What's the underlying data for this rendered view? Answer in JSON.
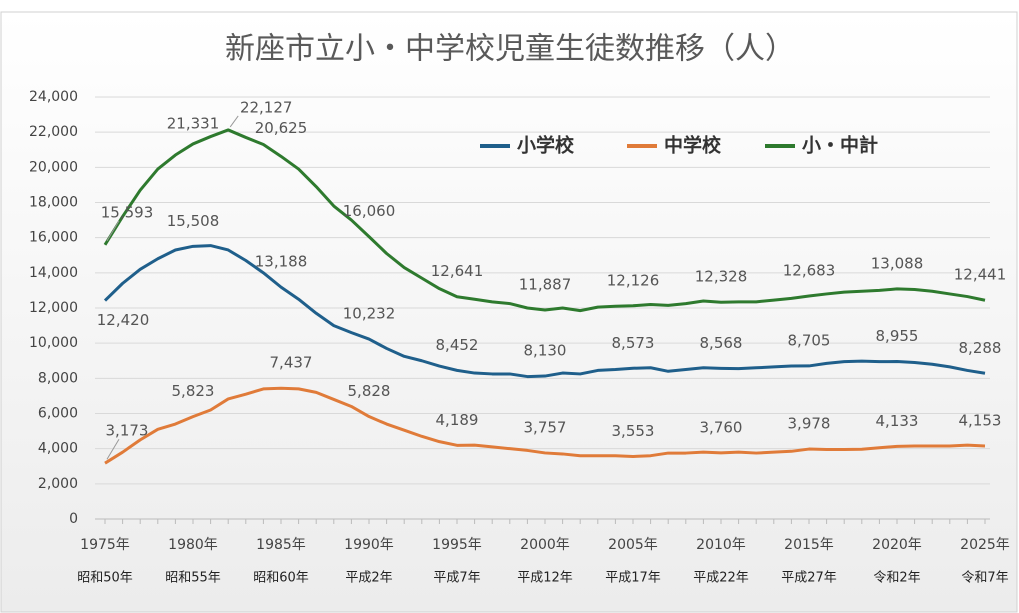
{
  "chart_data": {
    "type": "line",
    "title": "新座市立小・中学校児童生徒数推移（人）",
    "x": [
      1975,
      1976,
      1977,
      1978,
      1979,
      1980,
      1981,
      1982,
      1983,
      1984,
      1985,
      1986,
      1987,
      1988,
      1989,
      1990,
      1991,
      1992,
      1993,
      1994,
      1995,
      1996,
      1997,
      1998,
      1999,
      2000,
      2001,
      2002,
      2003,
      2004,
      2005,
      2006,
      2007,
      2008,
      2009,
      2010,
      2011,
      2012,
      2013,
      2014,
      2015,
      2016,
      2017,
      2018,
      2019,
      2020,
      2021,
      2022,
      2023,
      2024,
      2025
    ],
    "xlim": [
      1975,
      2025
    ],
    "xticks": [
      {
        "value": 1975,
        "label": "1975年"
      },
      {
        "value": 1980,
        "label": "1980年"
      },
      {
        "value": 1985,
        "label": "1985年"
      },
      {
        "value": 1990,
        "label": "1990年"
      },
      {
        "value": 1995,
        "label": "1995年"
      },
      {
        "value": 2000,
        "label": "2000年"
      },
      {
        "value": 2005,
        "label": "2005年"
      },
      {
        "value": 2010,
        "label": "2010年"
      },
      {
        "value": 2015,
        "label": "2015年"
      },
      {
        "value": 2020,
        "label": "2020年"
      },
      {
        "value": 2025,
        "label": "2025年"
      }
    ],
    "xtick_sublabels": [
      "昭和50年",
      "昭和55年",
      "昭和60年",
      "平成2年",
      "平成7年",
      "平成12年",
      "平成17年",
      "平成22年",
      "平成27年",
      "令和2年",
      "令和7年"
    ],
    "ylim": [
      0,
      24000
    ],
    "yticks": [
      0,
      {
        "value": 2000,
        "label": "2,000"
      },
      {
        "value": 4000,
        "label": "4,000"
      },
      {
        "value": 6000,
        "label": "6,000"
      },
      {
        "value": 8000,
        "label": "8,000"
      },
      {
        "value": 10000,
        "label": "10,000"
      },
      {
        "value": 12000,
        "label": "12,000"
      },
      {
        "value": 14000,
        "label": "14,000"
      },
      {
        "value": 16000,
        "label": "16,000"
      },
      {
        "value": 18000,
        "label": "18,000"
      },
      {
        "value": 20000,
        "label": "20,000"
      },
      {
        "value": 22000,
        "label": "22,000"
      },
      {
        "value": 24000,
        "label": "24,000"
      }
    ],
    "grid": true,
    "legend": "top-right",
    "series": [
      {
        "name": "小学校",
        "color": "#1f5f8b",
        "values": [
          12420,
          13400,
          14200,
          14800,
          15300,
          15508,
          15550,
          15300,
          14700,
          14000,
          13188,
          12500,
          11700,
          11000,
          10600,
          10232,
          9700,
          9250,
          9000,
          8700,
          8452,
          8300,
          8250,
          8250,
          8100,
          8130,
          8300,
          8250,
          8450,
          8500,
          8573,
          8600,
          8400,
          8500,
          8600,
          8568,
          8550,
          8600,
          8650,
          8700,
          8705,
          8850,
          8950,
          8980,
          8950,
          8955,
          8900,
          8800,
          8650,
          8450,
          8288
        ],
        "value_labels": [
          "12,420",
          null,
          null,
          null,
          null,
          "15,508",
          null,
          null,
          null,
          null,
          "13,188",
          null,
          null,
          null,
          null,
          "10,232",
          null,
          null,
          null,
          null,
          "8,452",
          null,
          null,
          null,
          null,
          "8,130",
          null,
          null,
          null,
          null,
          "8,573",
          null,
          null,
          null,
          null,
          "8,568",
          null,
          null,
          null,
          null,
          "8,705",
          null,
          null,
          null,
          null,
          "8,955",
          null,
          null,
          null,
          null,
          "8,288"
        ]
      },
      {
        "name": "中学校",
        "color": "#e07b39",
        "values": [
          3173,
          3800,
          4500,
          5100,
          5400,
          5823,
          6200,
          6827,
          7100,
          7400,
          7437,
          7400,
          7200,
          6800,
          6400,
          5828,
          5400,
          5050,
          4700,
          4400,
          4189,
          4200,
          4100,
          4000,
          3900,
          3757,
          3700,
          3600,
          3600,
          3600,
          3553,
          3600,
          3750,
          3750,
          3800,
          3760,
          3800,
          3750,
          3800,
          3850,
          3978,
          3950,
          3950,
          3970,
          4050,
          4133,
          4150,
          4150,
          4150,
          4200,
          4153
        ],
        "value_labels": [
          "3,173",
          null,
          null,
          null,
          null,
          "5,823",
          null,
          null,
          null,
          null,
          "7,437",
          null,
          null,
          null,
          null,
          "5,828",
          null,
          null,
          null,
          null,
          "4,189",
          null,
          null,
          null,
          null,
          "3,757",
          null,
          null,
          null,
          null,
          "3,553",
          null,
          null,
          null,
          null,
          "3,760",
          null,
          null,
          null,
          null,
          "3,978",
          null,
          null,
          null,
          null,
          "4,133",
          null,
          null,
          null,
          null,
          "4,153"
        ]
      },
      {
        "name": "小・中計",
        "color": "#2e7a2e",
        "values": [
          15593,
          17200,
          18700,
          19900,
          20700,
          21331,
          21750,
          22127,
          21700,
          21300,
          20625,
          19900,
          18900,
          17800,
          17000,
          16060,
          15100,
          14300,
          13700,
          13100,
          12641,
          12500,
          12350,
          12250,
          12000,
          11887,
          12000,
          11850,
          12050,
          12100,
          12126,
          12200,
          12150,
          12250,
          12400,
          12328,
          12350,
          12350,
          12450,
          12550,
          12683,
          12800,
          12900,
          12950,
          13000,
          13088,
          13050,
          12950,
          12800,
          12650,
          12441
        ],
        "value_labels": [
          "15,593",
          null,
          null,
          null,
          null,
          "21,331",
          null,
          "22,127",
          null,
          null,
          "20,625",
          null,
          null,
          null,
          null,
          "16,060",
          null,
          null,
          null,
          null,
          "12,641",
          null,
          null,
          null,
          null,
          "11,887",
          null,
          null,
          null,
          null,
          "12,126",
          null,
          null,
          null,
          null,
          "12,328",
          null,
          null,
          null,
          null,
          "12,683",
          null,
          null,
          null,
          null,
          "13,088",
          null,
          null,
          null,
          null,
          "12,441"
        ]
      }
    ]
  }
}
